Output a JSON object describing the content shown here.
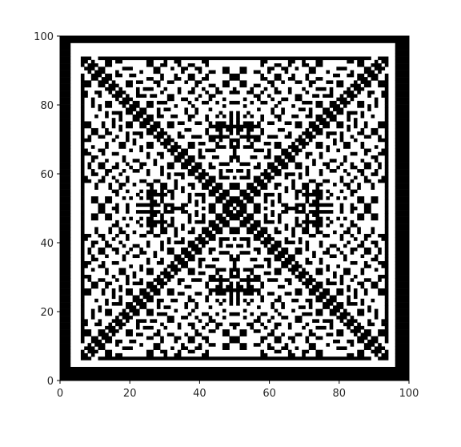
{
  "chart_data": {
    "type": "heatmap",
    "colormap": "binary (black / white)",
    "xlim": [
      0,
      100
    ],
    "ylim": [
      100,
      0
    ],
    "x_ticks": [
      0,
      20,
      40,
      60,
      80,
      100
    ],
    "y_ticks": [
      0,
      20,
      40,
      60,
      80,
      100
    ],
    "x_tick_labels": [
      "0",
      "20",
      "40",
      "60",
      "80",
      "100"
    ],
    "y_tick_labels": [
      "0",
      "20",
      "40",
      "60",
      "80",
      "100"
    ],
    "title": "",
    "xlabel": "",
    "ylabel": "",
    "pattern": "square binary cellular-automaton pattern, 101 x 101 cells, symmetric about both diagonals; thick black border frame with dark diagonal bands crossing at the center (50, 50)",
    "colors": {
      "on": "#000000",
      "off": "#ffffff",
      "tick_text": "#262626"
    }
  }
}
